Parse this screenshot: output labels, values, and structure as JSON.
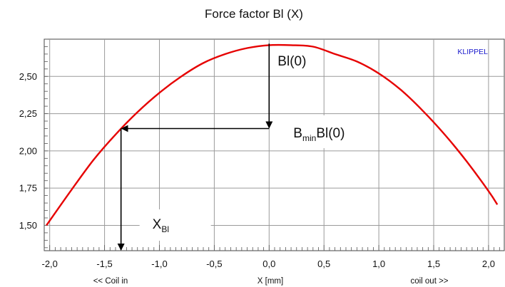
{
  "chart_data": {
    "type": "line",
    "title": "Force factor Bl (X)",
    "xlabel": "X [mm]",
    "xlabel_left": "<< Coil in",
    "xlabel_right": "coil out >>",
    "ylabel": "",
    "brand": "KLIPPEL",
    "xlim": [
      -2.05,
      2.15
    ],
    "ylim": [
      1.33,
      2.75
    ],
    "grid": true,
    "x_ticks": [
      -2.0,
      -1.5,
      -1.0,
      -0.5,
      0.0,
      0.5,
      1.0,
      1.5,
      2.0
    ],
    "x_tick_labels": [
      "-2,0",
      "-1,5",
      "-1,0",
      "-0,5",
      "0,0",
      "0,5",
      "1,0",
      "1,5",
      "2,0"
    ],
    "y_ticks": [
      1.5,
      1.75,
      2.0,
      2.25,
      2.5
    ],
    "y_tick_labels": [
      "1,50",
      "1,75",
      "2,00",
      "2,25",
      "2,50"
    ],
    "series": [
      {
        "color": "#e60000",
        "x": [
          -2.03,
          -1.8,
          -1.6,
          -1.4,
          -1.2,
          -1.0,
          -0.8,
          -0.6,
          -0.4,
          -0.2,
          0.0,
          0.2,
          0.4,
          0.6,
          0.8,
          1.0,
          1.2,
          1.4,
          1.6,
          1.8,
          2.0,
          2.08
        ],
        "y": [
          1.5,
          1.74,
          1.94,
          2.11,
          2.26,
          2.39,
          2.5,
          2.59,
          2.65,
          2.69,
          2.71,
          2.71,
          2.7,
          2.65,
          2.6,
          2.52,
          2.41,
          2.27,
          2.11,
          1.93,
          1.73,
          1.64
        ]
      }
    ],
    "annotations": {
      "bl0": {
        "label": "Bl(0)",
        "x": 0.0,
        "y_from": 2.72,
        "y_to": 2.15
      },
      "bmin": {
        "label_main": "B",
        "label_sub": "min",
        "label_rest": "Bl(0)",
        "x_from": 0.0,
        "x_to": -1.35,
        "y": 2.15
      },
      "xbl": {
        "label_main": "X",
        "label_sub": "Bl",
        "x": -1.35,
        "y_from": 2.15,
        "y_to": 1.33
      }
    }
  }
}
